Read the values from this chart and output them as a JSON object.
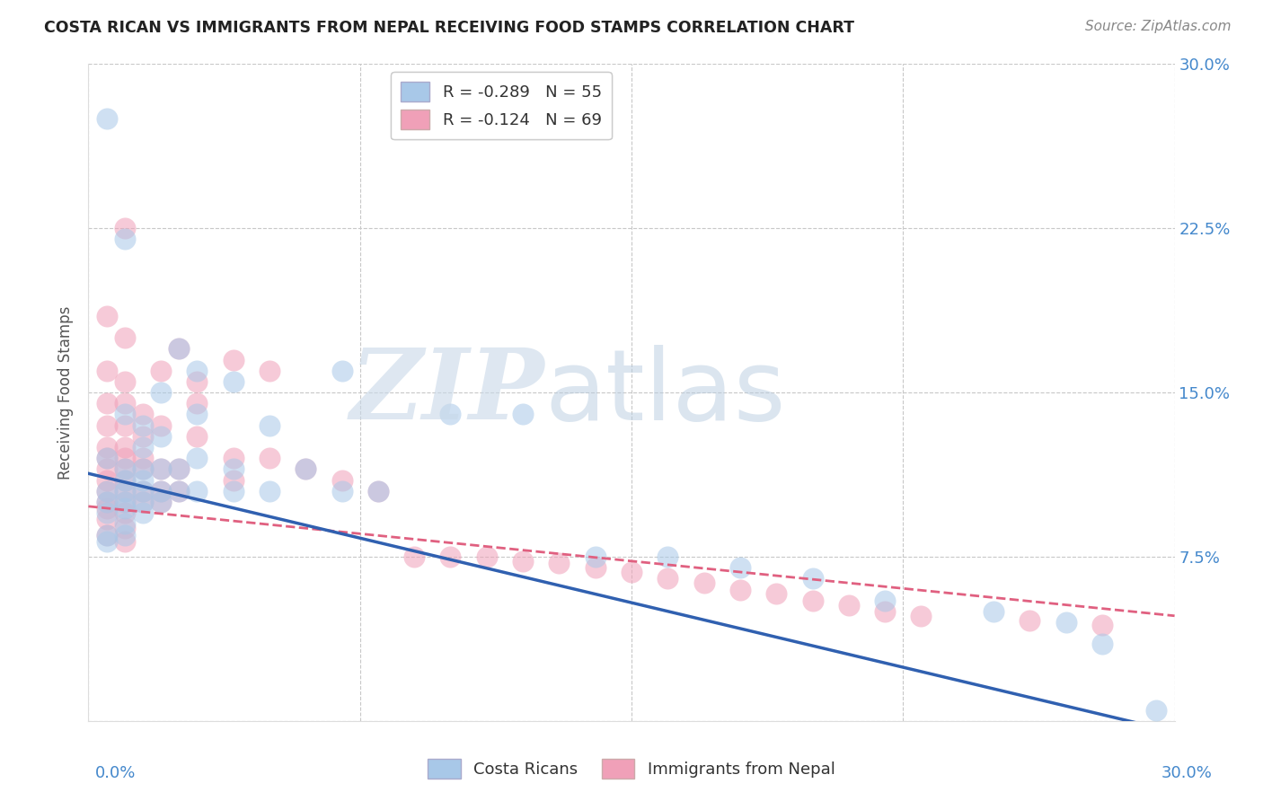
{
  "title": "COSTA RICAN VS IMMIGRANTS FROM NEPAL RECEIVING FOOD STAMPS CORRELATION CHART",
  "source": "Source: ZipAtlas.com",
  "ylabel": "Receiving Food Stamps",
  "xlim": [
    0.0,
    0.3
  ],
  "ylim": [
    0.0,
    0.3
  ],
  "legend_r1": "R = -0.289   N = 55",
  "legend_r2": "R = -0.124   N = 69",
  "color_blue": "#a8c8e8",
  "color_pink": "#f0a0b8",
  "line_color_blue": "#3060b0",
  "line_color_pink": "#e06080",
  "blue_line_y0": 0.113,
  "blue_line_y1": -0.005,
  "pink_line_y0": 0.098,
  "pink_line_y1": 0.048,
  "blue_dots": [
    [
      0.005,
      0.275
    ],
    [
      0.005,
      0.12
    ],
    [
      0.005,
      0.105
    ],
    [
      0.005,
      0.1
    ],
    [
      0.005,
      0.095
    ],
    [
      0.005,
      0.085
    ],
    [
      0.005,
      0.082
    ],
    [
      0.01,
      0.22
    ],
    [
      0.01,
      0.14
    ],
    [
      0.01,
      0.115
    ],
    [
      0.01,
      0.11
    ],
    [
      0.01,
      0.105
    ],
    [
      0.01,
      0.1
    ],
    [
      0.01,
      0.097
    ],
    [
      0.01,
      0.09
    ],
    [
      0.01,
      0.085
    ],
    [
      0.015,
      0.135
    ],
    [
      0.015,
      0.125
    ],
    [
      0.015,
      0.115
    ],
    [
      0.015,
      0.11
    ],
    [
      0.015,
      0.105
    ],
    [
      0.015,
      0.1
    ],
    [
      0.015,
      0.095
    ],
    [
      0.02,
      0.15
    ],
    [
      0.02,
      0.13
    ],
    [
      0.02,
      0.115
    ],
    [
      0.02,
      0.105
    ],
    [
      0.02,
      0.1
    ],
    [
      0.025,
      0.17
    ],
    [
      0.025,
      0.115
    ],
    [
      0.025,
      0.105
    ],
    [
      0.03,
      0.16
    ],
    [
      0.03,
      0.14
    ],
    [
      0.03,
      0.12
    ],
    [
      0.03,
      0.105
    ],
    [
      0.04,
      0.155
    ],
    [
      0.04,
      0.115
    ],
    [
      0.04,
      0.105
    ],
    [
      0.05,
      0.135
    ],
    [
      0.05,
      0.105
    ],
    [
      0.06,
      0.115
    ],
    [
      0.07,
      0.16
    ],
    [
      0.07,
      0.105
    ],
    [
      0.08,
      0.105
    ],
    [
      0.1,
      0.14
    ],
    [
      0.12,
      0.14
    ],
    [
      0.14,
      0.075
    ],
    [
      0.16,
      0.075
    ],
    [
      0.18,
      0.07
    ],
    [
      0.2,
      0.065
    ],
    [
      0.22,
      0.055
    ],
    [
      0.25,
      0.05
    ],
    [
      0.27,
      0.045
    ],
    [
      0.28,
      0.035
    ],
    [
      0.295,
      0.005
    ]
  ],
  "pink_dots": [
    [
      0.005,
      0.185
    ],
    [
      0.005,
      0.16
    ],
    [
      0.005,
      0.145
    ],
    [
      0.005,
      0.135
    ],
    [
      0.005,
      0.125
    ],
    [
      0.005,
      0.12
    ],
    [
      0.005,
      0.115
    ],
    [
      0.005,
      0.11
    ],
    [
      0.005,
      0.105
    ],
    [
      0.005,
      0.1
    ],
    [
      0.005,
      0.097
    ],
    [
      0.005,
      0.092
    ],
    [
      0.005,
      0.085
    ],
    [
      0.01,
      0.225
    ],
    [
      0.01,
      0.175
    ],
    [
      0.01,
      0.155
    ],
    [
      0.01,
      0.145
    ],
    [
      0.01,
      0.135
    ],
    [
      0.01,
      0.125
    ],
    [
      0.01,
      0.12
    ],
    [
      0.01,
      0.115
    ],
    [
      0.01,
      0.11
    ],
    [
      0.01,
      0.105
    ],
    [
      0.01,
      0.1
    ],
    [
      0.01,
      0.095
    ],
    [
      0.01,
      0.088
    ],
    [
      0.01,
      0.082
    ],
    [
      0.015,
      0.14
    ],
    [
      0.015,
      0.13
    ],
    [
      0.015,
      0.12
    ],
    [
      0.015,
      0.115
    ],
    [
      0.015,
      0.105
    ],
    [
      0.015,
      0.1
    ],
    [
      0.02,
      0.16
    ],
    [
      0.02,
      0.135
    ],
    [
      0.02,
      0.115
    ],
    [
      0.02,
      0.105
    ],
    [
      0.02,
      0.1
    ],
    [
      0.025,
      0.17
    ],
    [
      0.025,
      0.115
    ],
    [
      0.025,
      0.105
    ],
    [
      0.03,
      0.155
    ],
    [
      0.03,
      0.145
    ],
    [
      0.03,
      0.13
    ],
    [
      0.04,
      0.165
    ],
    [
      0.04,
      0.12
    ],
    [
      0.04,
      0.11
    ],
    [
      0.05,
      0.16
    ],
    [
      0.05,
      0.12
    ],
    [
      0.06,
      0.115
    ],
    [
      0.07,
      0.11
    ],
    [
      0.08,
      0.105
    ],
    [
      0.09,
      0.075
    ],
    [
      0.1,
      0.075
    ],
    [
      0.11,
      0.075
    ],
    [
      0.12,
      0.073
    ],
    [
      0.13,
      0.072
    ],
    [
      0.14,
      0.07
    ],
    [
      0.15,
      0.068
    ],
    [
      0.16,
      0.065
    ],
    [
      0.17,
      0.063
    ],
    [
      0.18,
      0.06
    ],
    [
      0.19,
      0.058
    ],
    [
      0.2,
      0.055
    ],
    [
      0.21,
      0.053
    ],
    [
      0.22,
      0.05
    ],
    [
      0.23,
      0.048
    ],
    [
      0.26,
      0.046
    ],
    [
      0.28,
      0.044
    ]
  ]
}
